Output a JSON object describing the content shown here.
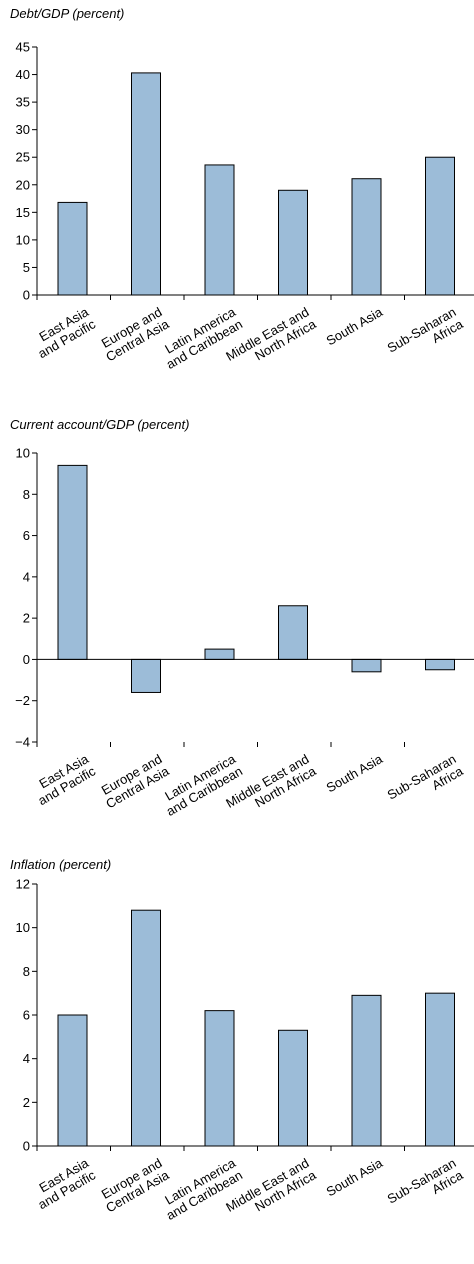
{
  "chart_data": [
    {
      "type": "bar",
      "title": "Debt/GDP (percent)",
      "categories": [
        [
          "East Asia",
          "and Pacific"
        ],
        [
          "Europe and",
          "Central Asia"
        ],
        [
          "Latin America",
          "and Caribbean"
        ],
        [
          "Middle East and",
          "North Africa"
        ],
        [
          "South Asia"
        ],
        [
          "Sub-Saharan",
          "Africa"
        ]
      ],
      "values": [
        16.8,
        40.3,
        23.6,
        19.0,
        21.1,
        25.0
      ],
      "yticks": [
        0,
        5,
        10,
        15,
        20,
        25,
        30,
        35,
        40,
        45
      ],
      "ylim": [
        0,
        45
      ],
      "bar_color": "#9cbcd8"
    },
    {
      "type": "bar",
      "title": "Current account/GDP (percent)",
      "categories": [
        [
          "East Asia",
          "and Pacific"
        ],
        [
          "Europe and",
          "Central Asia"
        ],
        [
          "Latin America",
          "and Caribbean"
        ],
        [
          "Middle East and",
          "North Africa"
        ],
        [
          "South Asia"
        ],
        [
          "Sub-Saharan",
          "Africa"
        ]
      ],
      "values": [
        9.4,
        -1.6,
        0.5,
        2.6,
        -0.6,
        -0.5
      ],
      "yticks": [
        "−4",
        "−2",
        "0",
        "2",
        "4",
        "6",
        "8",
        "10"
      ],
      "ylim": [
        -4,
        10
      ],
      "bar_color": "#9cbcd8"
    },
    {
      "type": "bar",
      "title": "Inflation (percent)",
      "categories": [
        [
          "East Asia",
          "and Pacific"
        ],
        [
          "Europe and",
          "Central Asia"
        ],
        [
          "Latin America",
          "and Caribbean"
        ],
        [
          "Middle East and",
          "North Africa"
        ],
        [
          "South Asia"
        ],
        [
          "Sub-Saharan",
          "Africa"
        ]
      ],
      "values": [
        6.0,
        10.8,
        6.2,
        5.3,
        6.9,
        7.0
      ],
      "yticks": [
        0,
        2,
        4,
        6,
        8,
        10,
        12
      ],
      "ylim": [
        0,
        12
      ],
      "bar_color": "#9cbcd8"
    }
  ]
}
